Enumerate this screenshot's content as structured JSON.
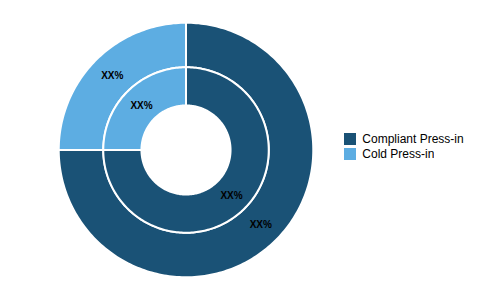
{
  "chart_data": {
    "type": "pie",
    "categories": [
      "Compliant Press-in",
      "Cold Press-in"
    ],
    "colors": [
      "#1a5276",
      "#5dade2"
    ],
    "series": [
      {
        "values": [
          75,
          25
        ],
        "value_labels": [
          "XX%",
          "XX%"
        ]
      },
      {
        "values": [
          75,
          25
        ],
        "value_labels": [
          "XX%",
          "XX%"
        ]
      }
    ],
    "data_labels": true,
    "legend": "right"
  }
}
